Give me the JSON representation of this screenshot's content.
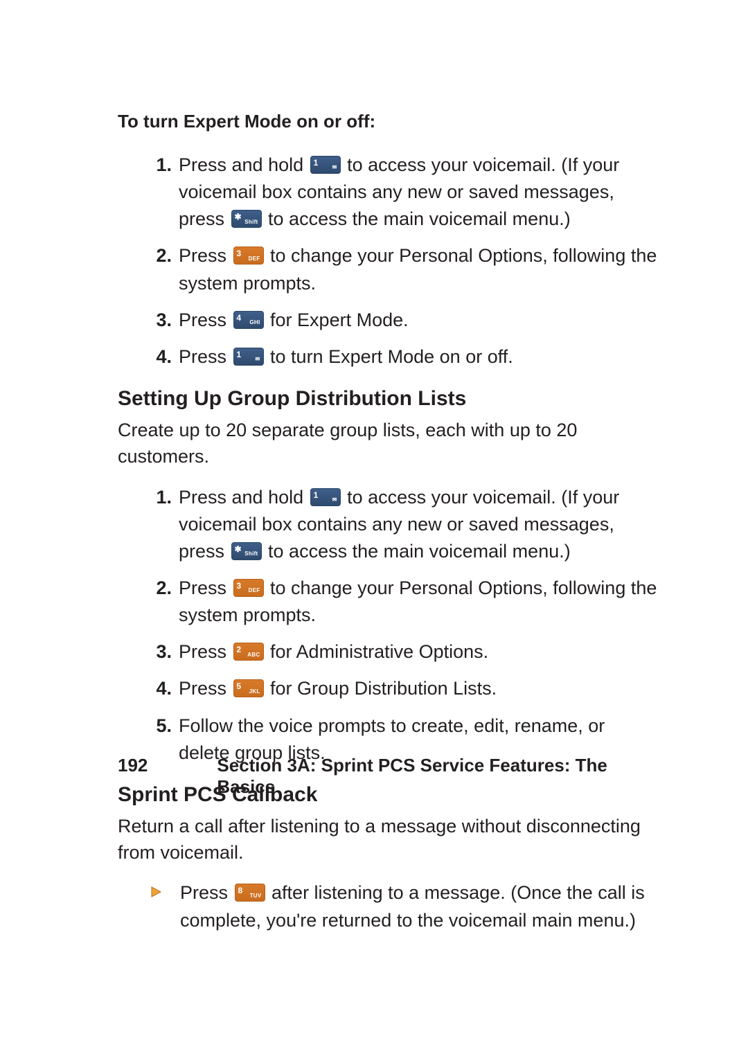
{
  "colors": {
    "text": "#231f20",
    "key_blue": "#3f5f8a",
    "key_blue_border": "#2a4668",
    "key_orange": "#d87a2a",
    "key_orange_border": "#b55f18",
    "triangle_fill": "#f0a23c",
    "triangle_stroke": "#b86f14"
  },
  "intro": {
    "text": "To turn Expert Mode on or off:"
  },
  "expert_steps": [
    {
      "num": "1.",
      "parts": [
        {
          "t": "Press and hold "
        },
        {
          "key": {
            "digit": "1",
            "sub": "✉",
            "variant": "blue"
          }
        },
        {
          "t": " to access your voicemail. (If your voicemail box contains any new or saved messages, press "
        },
        {
          "key": {
            "digit": "✱",
            "sub": "Shift",
            "variant": "blue"
          }
        },
        {
          "t": " to access the main voicemail menu.)"
        }
      ]
    },
    {
      "num": "2.",
      "parts": [
        {
          "t": "Press "
        },
        {
          "key": {
            "digit": "3",
            "sub": "DEF",
            "variant": "orange"
          }
        },
        {
          "t": " to change your Personal Options, following the system prompts."
        }
      ]
    },
    {
      "num": "3.",
      "parts": [
        {
          "t": "Press "
        },
        {
          "key": {
            "digit": "4",
            "sub": "GHI",
            "variant": "blue"
          }
        },
        {
          "t": " for Expert Mode."
        }
      ]
    },
    {
      "num": "4.",
      "parts": [
        {
          "t": "Press "
        },
        {
          "key": {
            "digit": "1",
            "sub": "✉",
            "variant": "blue"
          }
        },
        {
          "t": " to turn Expert Mode on or off."
        }
      ]
    }
  ],
  "group_heading": "Setting Up Group Distribution Lists",
  "group_para": "Create up to 20 separate group lists, each with up to 20 customers.",
  "group_steps": [
    {
      "num": "1.",
      "parts": [
        {
          "t": "Press and hold "
        },
        {
          "key": {
            "digit": "1",
            "sub": "✉",
            "variant": "blue"
          }
        },
        {
          "t": " to access your voicemail. (If your voicemail box contains any new or saved messages, press "
        },
        {
          "key": {
            "digit": "✱",
            "sub": "Shift",
            "variant": "blue"
          }
        },
        {
          "t": " to access the main voicemail menu.)"
        }
      ]
    },
    {
      "num": "2.",
      "parts": [
        {
          "t": "Press "
        },
        {
          "key": {
            "digit": "3",
            "sub": "DEF",
            "variant": "orange"
          }
        },
        {
          "t": " to change your Personal Options, following the system prompts."
        }
      ]
    },
    {
      "num": "3.",
      "parts": [
        {
          "t": "Press "
        },
        {
          "key": {
            "digit": "2",
            "sub": "ABC",
            "variant": "orange"
          }
        },
        {
          "t": " for Administrative Options."
        }
      ]
    },
    {
      "num": "4.",
      "parts": [
        {
          "t": "Press "
        },
        {
          "key": {
            "digit": "5",
            "sub": "JKL",
            "variant": "orange"
          }
        },
        {
          "t": " for Group Distribution Lists."
        }
      ]
    },
    {
      "num": "5.",
      "parts": [
        {
          "t": "Follow the voice prompts to create, edit, rename, or delete group lists."
        }
      ]
    }
  ],
  "callback_heading": "Sprint PCS Callback",
  "callback_para": "Return a call after listening to a message without disconnecting from voicemail.",
  "callback_bullet": {
    "parts": [
      {
        "t": "Press "
      },
      {
        "key": {
          "digit": "8",
          "sub": "TUV",
          "variant": "orange"
        }
      },
      {
        "t": " after listening to a message. (Once the call is complete, you're returned to the voicemail main menu.)"
      }
    ]
  },
  "footer": {
    "page_number": "192",
    "section": "Section 3A: Sprint PCS Service Features: The Basics"
  }
}
